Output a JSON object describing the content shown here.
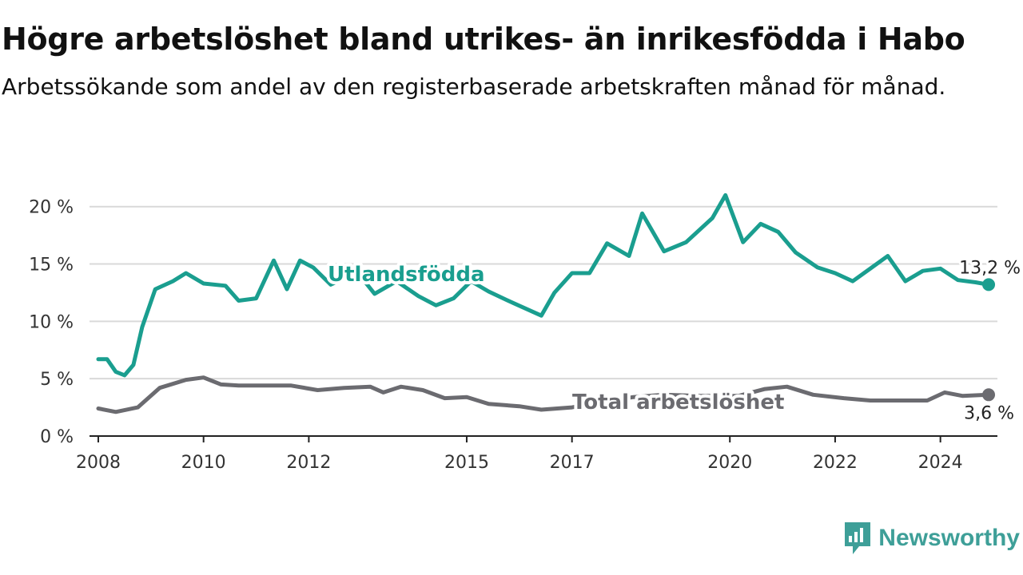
{
  "title": "Högre arbetslöshet bland utrikes- än inrikesfödda i Habo",
  "subtitle": "Arbetssökande som andel av den registerbaserade arbetskraften månad för månad.",
  "brand": {
    "name": "Newsworthy",
    "icon": "newsworthy-logo-icon",
    "color": "#3e9f98"
  },
  "chart_data": {
    "type": "line",
    "title": "Högre arbetslöshet bland utrikes- än inrikesfödda i Habo",
    "subtitle": "Arbetssökande som andel av den registerbaserade arbetskraften månad för månad.",
    "xlabel": "",
    "ylabel": "",
    "x_ticks": [
      "2008",
      "2010",
      "2012",
      "2015",
      "2017",
      "2020",
      "2022",
      "2024"
    ],
    "y_ticks": [
      "0 %",
      "5 %",
      "10 %",
      "15 %",
      "20 %"
    ],
    "ylim": [
      0,
      22
    ],
    "grid": true,
    "legend": "inline labels",
    "series": [
      {
        "name": "Utlandsfödda",
        "color": "#1a9e8f",
        "end_label": "13,2 %",
        "points": [
          [
            "2008-01",
            6.7
          ],
          [
            "2008-03",
            6.7
          ],
          [
            "2008-05",
            5.6
          ],
          [
            "2008-07",
            5.3
          ],
          [
            "2008-09",
            6.2
          ],
          [
            "2008-11",
            9.5
          ],
          [
            "2009-02",
            12.8
          ],
          [
            "2009-06",
            13.5
          ],
          [
            "2009-09",
            14.2
          ],
          [
            "2010-01",
            13.3
          ],
          [
            "2010-06",
            13.1
          ],
          [
            "2010-09",
            11.8
          ],
          [
            "2011-01",
            12.0
          ],
          [
            "2011-05",
            15.3
          ],
          [
            "2011-08",
            12.8
          ],
          [
            "2011-11",
            15.3
          ],
          [
            "2012-02",
            14.7
          ],
          [
            "2012-06",
            13.2
          ],
          [
            "2012-12",
            14.3
          ],
          [
            "2013-04",
            12.4
          ],
          [
            "2013-09",
            13.5
          ],
          [
            "2014-02",
            12.2
          ],
          [
            "2014-06",
            11.4
          ],
          [
            "2014-10",
            12.0
          ],
          [
            "2015-02",
            13.5
          ],
          [
            "2015-06",
            12.6
          ],
          [
            "2015-11",
            11.7
          ],
          [
            "2016-06",
            10.5
          ],
          [
            "2016-09",
            12.5
          ],
          [
            "2017-01",
            14.2
          ],
          [
            "2017-05",
            14.2
          ],
          [
            "2017-09",
            16.8
          ],
          [
            "2018-02",
            15.7
          ],
          [
            "2018-05",
            19.4
          ],
          [
            "2018-10",
            16.1
          ],
          [
            "2019-03",
            16.9
          ],
          [
            "2019-09",
            19.0
          ],
          [
            "2019-12",
            21.0
          ],
          [
            "2020-04",
            16.9
          ],
          [
            "2020-08",
            18.5
          ],
          [
            "2020-12",
            17.8
          ],
          [
            "2021-04",
            16.0
          ],
          [
            "2021-09",
            14.7
          ],
          [
            "2022-01",
            14.2
          ],
          [
            "2022-05",
            13.5
          ],
          [
            "2022-09",
            14.6
          ],
          [
            "2023-01",
            15.7
          ],
          [
            "2023-05",
            13.5
          ],
          [
            "2023-09",
            14.4
          ],
          [
            "2024-01",
            14.6
          ],
          [
            "2024-05",
            13.6
          ],
          [
            "2024-09",
            13.4
          ],
          [
            "2024-12",
            13.2
          ]
        ]
      },
      {
        "name": "Total arbetslöshet",
        "color": "#6b6b70",
        "end_label": "3,6 %",
        "points": [
          [
            "2008-01",
            2.4
          ],
          [
            "2008-05",
            2.1
          ],
          [
            "2008-10",
            2.5
          ],
          [
            "2009-03",
            4.2
          ],
          [
            "2009-09",
            4.9
          ],
          [
            "2010-01",
            5.1
          ],
          [
            "2010-05",
            4.5
          ],
          [
            "2010-09",
            4.4
          ],
          [
            "2011-03",
            4.4
          ],
          [
            "2011-09",
            4.4
          ],
          [
            "2012-03",
            4.0
          ],
          [
            "2012-09",
            4.2
          ],
          [
            "2013-03",
            4.3
          ],
          [
            "2013-06",
            3.8
          ],
          [
            "2013-10",
            4.3
          ],
          [
            "2014-03",
            4.0
          ],
          [
            "2014-08",
            3.3
          ],
          [
            "2015-01",
            3.4
          ],
          [
            "2015-06",
            2.8
          ],
          [
            "2016-01",
            2.6
          ],
          [
            "2016-06",
            2.3
          ],
          [
            "2017-01",
            2.5
          ],
          [
            "2017-07",
            2.9
          ],
          [
            "2018-03",
            3.4
          ],
          [
            "2018-10",
            3.6
          ],
          [
            "2019-06",
            3.5
          ],
          [
            "2020-03",
            3.5
          ],
          [
            "2020-09",
            4.1
          ],
          [
            "2021-02",
            4.3
          ],
          [
            "2021-08",
            3.6
          ],
          [
            "2022-03",
            3.3
          ],
          [
            "2022-09",
            3.1
          ],
          [
            "2023-04",
            3.1
          ],
          [
            "2023-10",
            3.1
          ],
          [
            "2024-02",
            3.8
          ],
          [
            "2024-06",
            3.5
          ],
          [
            "2024-12",
            3.6
          ]
        ]
      }
    ]
  }
}
